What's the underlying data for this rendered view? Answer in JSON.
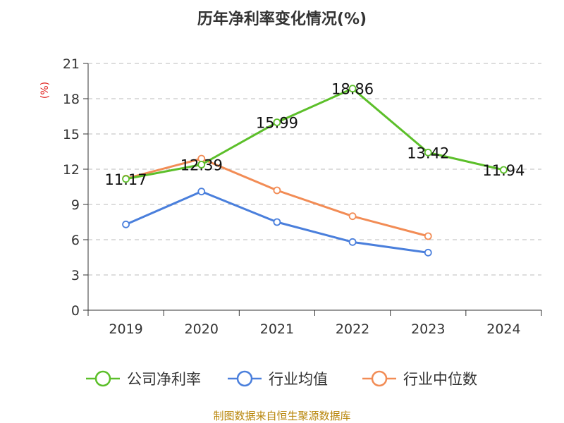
{
  "chart_data": {
    "type": "line",
    "title": "历年净利率变化情况(%)",
    "ylabel": "(%)",
    "xlabel": "",
    "categories": [
      "2019",
      "2020",
      "2021",
      "2022",
      "2023",
      "2024"
    ],
    "ylim": [
      0,
      21
    ],
    "yticks": [
      0,
      3,
      6,
      9,
      12,
      15,
      18,
      21
    ],
    "grid": "horizontal-dashed",
    "legend_position": "bottom",
    "series": [
      {
        "name": "公司净利率",
        "color": "#5cbf2a",
        "values": [
          11.17,
          12.39,
          15.99,
          18.86,
          13.42,
          11.94
        ],
        "labels": [
          "11.17",
          "12.39",
          "15.99",
          "18.86",
          "13.42",
          "11.94"
        ]
      },
      {
        "name": "行业均值",
        "color": "#4a7fdc",
        "values": [
          7.3,
          10.1,
          7.5,
          5.8,
          4.9,
          null
        ]
      },
      {
        "name": "行业中位数",
        "color": "#f28c55",
        "values": [
          11.2,
          12.9,
          10.2,
          8.0,
          6.3,
          null
        ]
      }
    ],
    "source": "制图数据来自恒生聚源数据库"
  }
}
